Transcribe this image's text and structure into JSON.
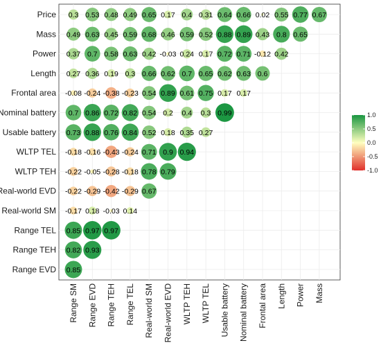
{
  "chart_data": {
    "type": "heatmap",
    "rows": [
      "Price",
      "Mass",
      "Power",
      "Length",
      "Frontal area",
      "Nominal battery",
      "Usable battery",
      "WLTP TEL",
      "WLTP TEH",
      "Real-world EVD",
      "Real-world SM",
      "Range TEL",
      "Range TEH",
      "Range EVD"
    ],
    "columns": [
      "Range SM",
      "Range EVD",
      "Range TEH",
      "Range TEL",
      "Real-world SM",
      "Real-world EVD",
      "WLTP TEH",
      "WLTP TEL",
      "Usable battery",
      "Nominal battery",
      "Frontal area",
      "Length",
      "Power",
      "Mass"
    ],
    "values": [
      [
        0.3,
        0.53,
        0.48,
        0.49,
        0.65,
        0.17,
        0.4,
        0.31,
        0.64,
        0.66,
        0.02,
        0.55,
        0.77,
        0.67
      ],
      [
        0.49,
        0.63,
        0.45,
        0.59,
        0.68,
        0.46,
        0.59,
        0.52,
        0.88,
        0.89,
        0.43,
        0.8,
        0.65
      ],
      [
        0.37,
        0.7,
        0.58,
        0.63,
        0.42,
        -0.03,
        0.24,
        0.17,
        0.72,
        0.71,
        -0.12,
        0.42
      ],
      [
        0.27,
        0.36,
        0.19,
        0.3,
        0.66,
        0.62,
        0.7,
        0.65,
        0.62,
        0.63,
        0.6
      ],
      [
        -0.08,
        -0.24,
        -0.38,
        -0.23,
        0.54,
        0.89,
        0.61,
        0.75,
        0.17,
        0.17
      ],
      [
        0.7,
        0.86,
        0.72,
        0.82,
        0.54,
        0.2,
        0.4,
        0.3,
        0.99
      ],
      [
        0.73,
        0.88,
        0.76,
        0.84,
        0.52,
        0.18,
        0.35,
        0.27
      ],
      [
        -0.18,
        -0.16,
        -0.43,
        -0.24,
        0.71,
        0.9,
        0.94
      ],
      [
        -0.22,
        -0.05,
        -0.28,
        -0.18,
        0.78,
        0.79
      ],
      [
        -0.22,
        -0.29,
        -0.42,
        -0.29,
        0.67
      ],
      [
        -0.17,
        0.18,
        -0.03,
        0.14
      ],
      [
        0.85,
        0.97,
        0.97
      ],
      [
        0.82,
        0.93
      ],
      [
        0.85
      ]
    ],
    "value_range": [
      -1.0,
      1.0
    ],
    "colors": {
      "low": "#e0302b",
      "mid": "#ffffbf",
      "high": "#1a9641"
    },
    "legend": {
      "position": "right",
      "ticks": [
        "1.0",
        "0.5",
        "0.0",
        "-0.5",
        "-1.0"
      ],
      "tick_values": [
        1.0,
        0.5,
        0.0,
        -0.5,
        -1.0
      ]
    },
    "grid": true
  }
}
